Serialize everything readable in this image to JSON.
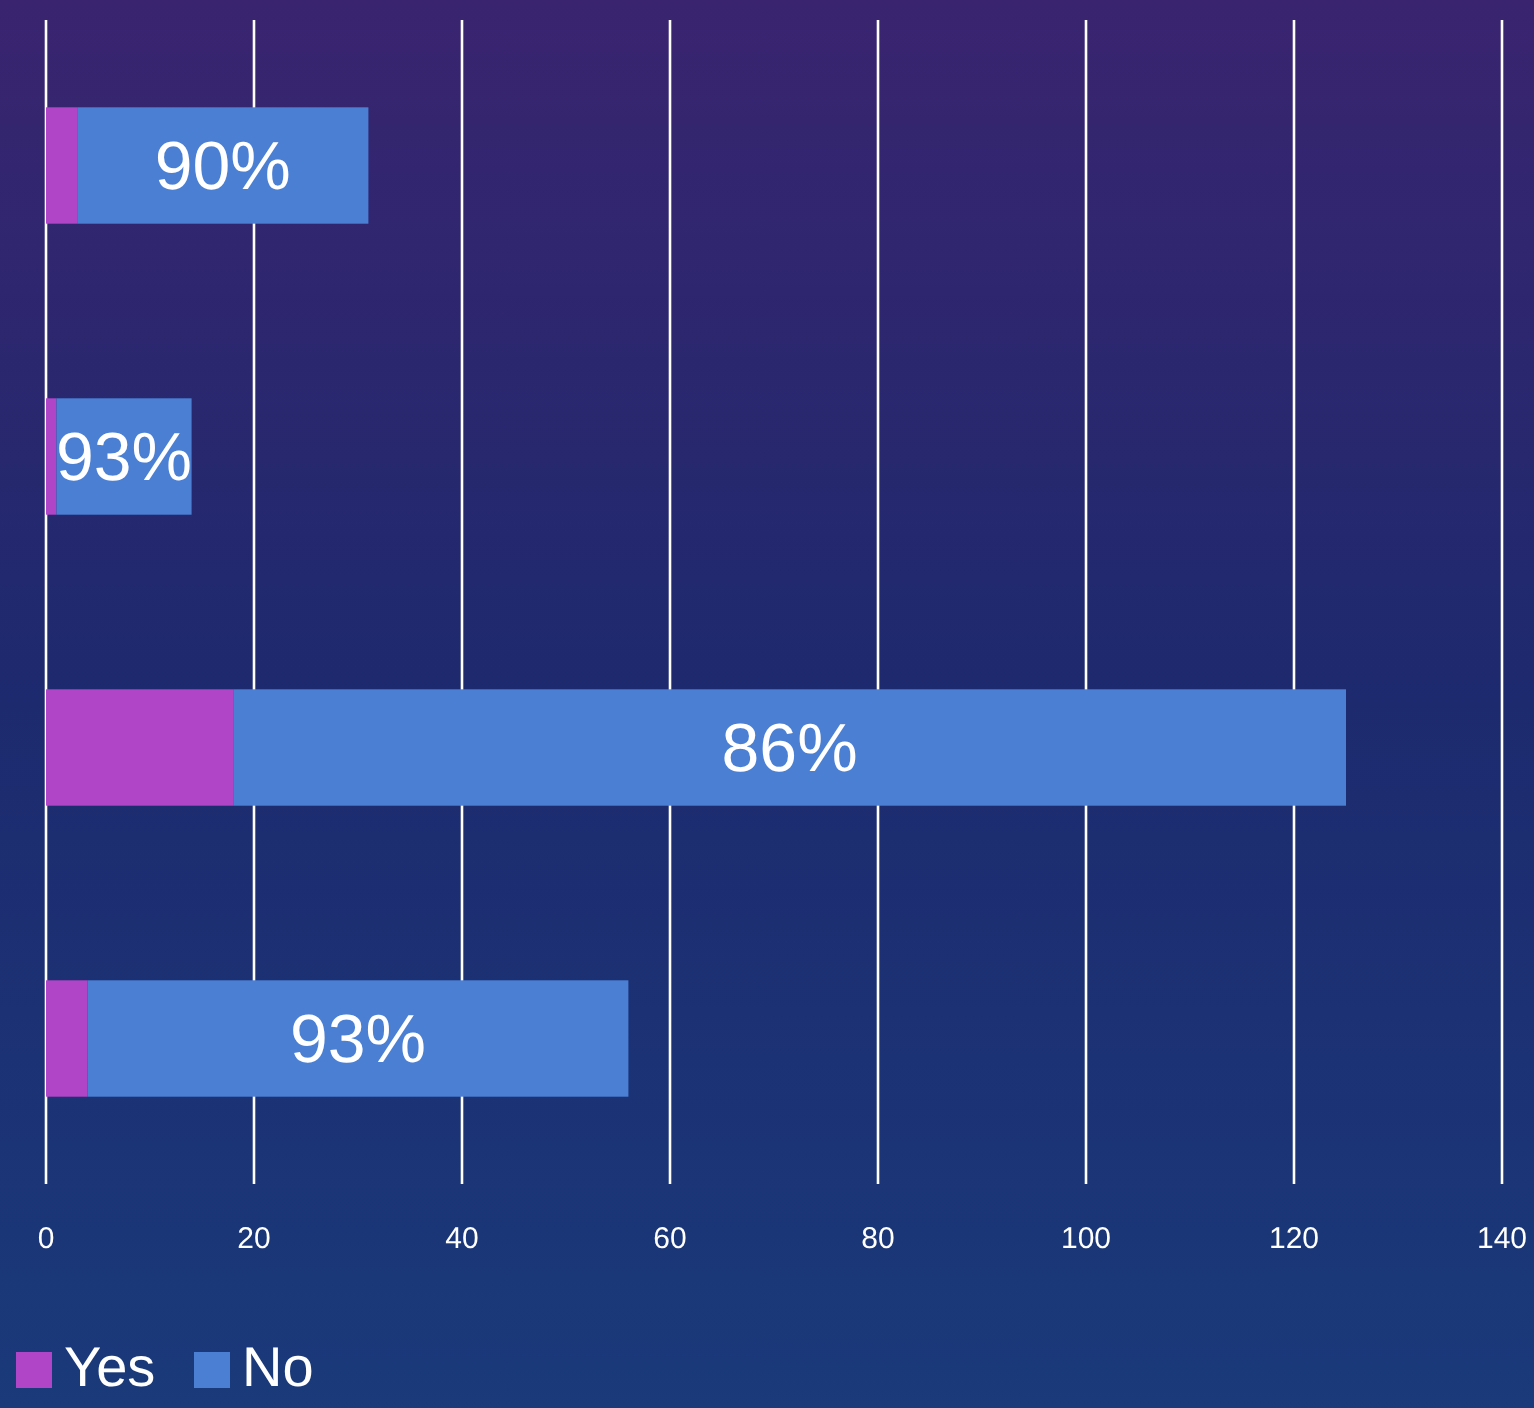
{
  "chart_data": {
    "type": "bar",
    "orientation": "horizontal",
    "stacked": true,
    "categories": [
      null,
      null,
      null,
      null
    ],
    "series": [
      {
        "name": "Yes",
        "color": "#b045c8",
        "values": [
          3,
          1,
          18,
          4
        ]
      },
      {
        "name": "No",
        "color": "#4a7fd4",
        "values": [
          28,
          13,
          107,
          52
        ]
      }
    ],
    "annotations": [
      "90%",
      "93%",
      "86%",
      "93%"
    ],
    "xlim": [
      0,
      140
    ],
    "xticks": [
      0,
      20,
      40,
      60,
      80,
      100,
      120,
      140
    ],
    "grid": "x",
    "legend": "bottom left"
  }
}
